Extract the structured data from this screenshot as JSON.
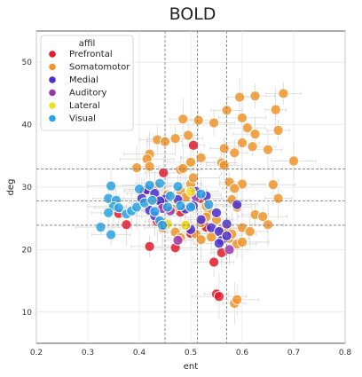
{
  "chart_data": {
    "type": "scatter",
    "title": "BOLD",
    "xlabel": "ent",
    "ylabel": "deg",
    "xlim": [
      0.2,
      0.8
    ],
    "ylim": [
      5,
      55
    ],
    "xticks": [
      "0.2",
      "0.3",
      "0.4",
      "0.5",
      "0.6",
      "0.7",
      "0.8"
    ],
    "yticks": [
      "10",
      "20",
      "30",
      "40",
      "50"
    ],
    "grid": true,
    "legend": {
      "title": "affil",
      "placement": "top-left",
      "entries": [
        "Prefrontal",
        "Somatomotor",
        "Medial",
        "Auditory",
        "Lateral",
        "Visual"
      ]
    },
    "colors": {
      "Prefrontal": "#e31a2c",
      "Somatomotor": "#f0942c",
      "Medial": "#4a2fd0",
      "Auditory": "#9b36b0",
      "Lateral": "#f0e020",
      "Visual": "#2aa2e4",
      "errorbar": "#d9d9d9",
      "refline": "#777777"
    },
    "reference_lines": {
      "vertical": [
        0.45,
        0.513,
        0.57
      ],
      "horizontal": [
        23.9,
        27.8,
        32.9
      ]
    },
    "series": [
      {
        "name": "Prefrontal",
        "points": [
          [
            0.447,
            32.3
          ],
          [
            0.505,
            36.7
          ],
          [
            0.36,
            25.8
          ],
          [
            0.375,
            24.0
          ],
          [
            0.41,
            29.4
          ],
          [
            0.445,
            27.2
          ],
          [
            0.47,
            20.3
          ],
          [
            0.42,
            20.5
          ],
          [
            0.53,
            23.6
          ],
          [
            0.545,
            18.0
          ],
          [
            0.55,
            12.9
          ],
          [
            0.555,
            12.5
          ],
          [
            0.56,
            19.5
          ],
          [
            0.48,
            26.0
          ],
          [
            0.5,
            22.6
          ],
          [
            0.52,
            28.2
          ],
          [
            0.435,
            24.5
          ]
        ]
      },
      {
        "name": "Somatomotor",
        "points": [
          [
            0.68,
            45.0
          ],
          [
            0.625,
            44.6
          ],
          [
            0.595,
            44.4
          ],
          [
            0.57,
            42.3
          ],
          [
            0.665,
            42.4
          ],
          [
            0.485,
            40.9
          ],
          [
            0.515,
            40.7
          ],
          [
            0.545,
            40.3
          ],
          [
            0.6,
            41.1
          ],
          [
            0.67,
            39.1
          ],
          [
            0.61,
            39.5
          ],
          [
            0.495,
            38.3
          ],
          [
            0.625,
            38.5
          ],
          [
            0.47,
            37.8
          ],
          [
            0.435,
            37.6
          ],
          [
            0.45,
            37.3
          ],
          [
            0.6,
            37.1
          ],
          [
            0.565,
            36.2
          ],
          [
            0.62,
            36.5
          ],
          [
            0.65,
            36.0
          ],
          [
            0.42,
            35.3
          ],
          [
            0.415,
            34.5
          ],
          [
            0.5,
            34.0
          ],
          [
            0.52,
            34.7
          ],
          [
            0.56,
            33.9
          ],
          [
            0.585,
            35.5
          ],
          [
            0.7,
            34.2
          ],
          [
            0.395,
            33.1
          ],
          [
            0.42,
            33.3
          ],
          [
            0.48,
            32.8
          ],
          [
            0.485,
            33.0
          ],
          [
            0.565,
            33.5
          ],
          [
            0.43,
            30.2
          ],
          [
            0.5,
            30.5
          ],
          [
            0.505,
            31.5
          ],
          [
            0.575,
            30.8
          ],
          [
            0.6,
            30.5
          ],
          [
            0.66,
            30.4
          ],
          [
            0.67,
            28.2
          ],
          [
            0.585,
            29.8
          ],
          [
            0.48,
            29.4
          ],
          [
            0.455,
            28.8
          ],
          [
            0.44,
            27.5
          ],
          [
            0.58,
            28.0
          ],
          [
            0.59,
            26.8
          ],
          [
            0.535,
            26.0
          ],
          [
            0.625,
            25.6
          ],
          [
            0.64,
            25.3
          ],
          [
            0.465,
            26.5
          ],
          [
            0.53,
            25.2
          ],
          [
            0.55,
            24.8
          ],
          [
            0.57,
            23.4
          ],
          [
            0.6,
            23.5
          ],
          [
            0.615,
            22.9
          ],
          [
            0.65,
            24.0
          ],
          [
            0.49,
            23.9
          ],
          [
            0.51,
            22.5
          ],
          [
            0.52,
            21.6
          ],
          [
            0.47,
            22.8
          ],
          [
            0.48,
            21.9
          ],
          [
            0.52,
            24.3
          ],
          [
            0.54,
            22.0
          ],
          [
            0.575,
            21.8
          ],
          [
            0.59,
            20.9
          ],
          [
            0.585,
            11.4
          ],
          [
            0.59,
            12.0
          ],
          [
            0.6,
            21.2
          ],
          [
            0.445,
            23.5
          ],
          [
            0.53,
            27.0
          ],
          [
            0.56,
            23.2
          ],
          [
            0.58,
            22.5
          ],
          [
            0.49,
            28.4
          ]
        ]
      },
      {
        "name": "Medial",
        "points": [
          [
            0.405,
            28.2
          ],
          [
            0.415,
            29.6
          ],
          [
            0.43,
            29.0
          ],
          [
            0.42,
            26.3
          ],
          [
            0.43,
            25.4
          ],
          [
            0.445,
            27.3
          ],
          [
            0.45,
            28.1
          ],
          [
            0.475,
            28.0
          ],
          [
            0.49,
            26.5
          ],
          [
            0.505,
            27.0
          ],
          [
            0.51,
            29.3
          ],
          [
            0.52,
            24.8
          ],
          [
            0.53,
            28.6
          ],
          [
            0.54,
            23.5
          ],
          [
            0.55,
            25.9
          ],
          [
            0.555,
            22.9
          ],
          [
            0.56,
            21.5
          ],
          [
            0.57,
            22.2
          ],
          [
            0.59,
            27.2
          ],
          [
            0.555,
            21.0
          ],
          [
            0.45,
            23.9
          ],
          [
            0.44,
            27.8
          ],
          [
            0.5,
            23.2
          ],
          [
            0.57,
            24.1
          ]
        ]
      },
      {
        "name": "Auditory",
        "points": [
          [
            0.445,
            26.6
          ],
          [
            0.475,
            21.5
          ],
          [
            0.51,
            28.5
          ],
          [
            0.575,
            20.0
          ],
          [
            0.46,
            26.2
          ]
        ]
      },
      {
        "name": "Lateral",
        "points": [
          [
            0.455,
            24.1
          ],
          [
            0.5,
            29.3
          ],
          [
            0.49,
            23.9
          ]
        ]
      },
      {
        "name": "Visual",
        "points": [
          [
            0.325,
            23.6
          ],
          [
            0.345,
            22.4
          ],
          [
            0.34,
            28.2
          ],
          [
            0.345,
            30.2
          ],
          [
            0.355,
            27.9
          ],
          [
            0.35,
            26.9
          ],
          [
            0.34,
            25.9
          ],
          [
            0.36,
            26.7
          ],
          [
            0.375,
            25.7
          ],
          [
            0.385,
            26.2
          ],
          [
            0.395,
            26.8
          ],
          [
            0.4,
            29.7
          ],
          [
            0.41,
            27.5
          ],
          [
            0.42,
            30.3
          ],
          [
            0.44,
            30.6
          ],
          [
            0.425,
            27.9
          ],
          [
            0.43,
            26.1
          ],
          [
            0.455,
            26.8
          ],
          [
            0.46,
            28.6
          ],
          [
            0.475,
            30.1
          ],
          [
            0.44,
            24.6
          ],
          [
            0.445,
            23.9
          ],
          [
            0.52,
            28.9
          ],
          [
            0.535,
            27.2
          ],
          [
            0.48,
            27.0
          ],
          [
            0.5,
            26.8
          ]
        ]
      }
    ]
  }
}
